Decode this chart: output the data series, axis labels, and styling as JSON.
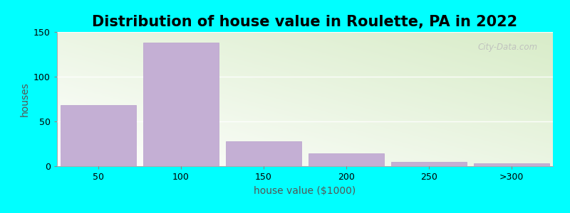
{
  "title": "Distribution of house value in Roulette, PA in 2022",
  "xlabel": "house value ($1000)",
  "ylabel": "houses",
  "categories": [
    "50",
    "100",
    "150",
    "200",
    "250",
    ">300"
  ],
  "values": [
    68,
    138,
    28,
    14,
    5,
    3
  ],
  "bar_color": "#c4afd4",
  "bar_edge_color": "#b89ecc",
  "ylim": [
    0,
    150
  ],
  "yticks": [
    0,
    50,
    100,
    150
  ],
  "background_color": "#00FFFF",
  "title_fontsize": 15,
  "axis_label_fontsize": 10,
  "tick_fontsize": 9,
  "bar_width": 0.92,
  "watermark_text": "City-Data.com"
}
